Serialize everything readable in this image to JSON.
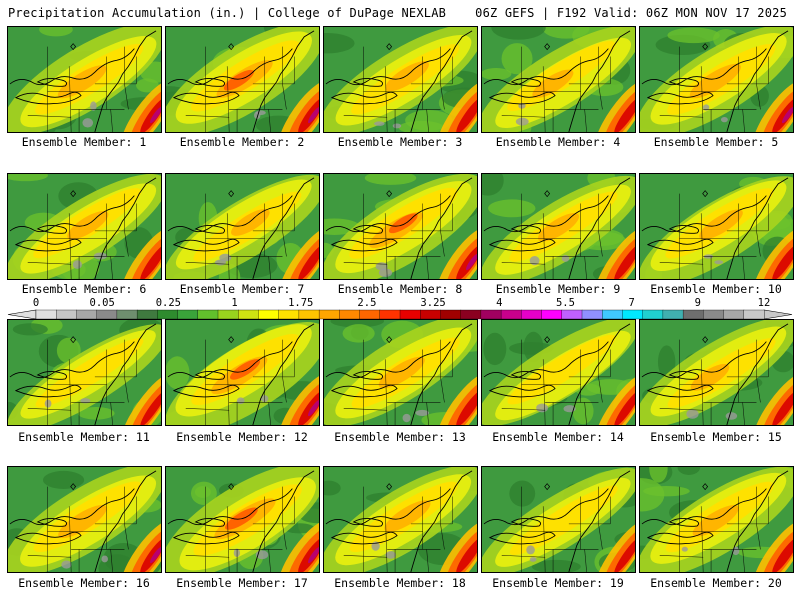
{
  "header": {
    "title_left": "Precipitation Accumulation (in.) | College of DuPage NEXLAB",
    "title_right": "06Z GEFS | F192 Valid: 06Z MON NOV 17 2025"
  },
  "panels": [
    {
      "label": "Ensemble Member: 1",
      "intensity": 0.95
    },
    {
      "label": "Ensemble Member: 2",
      "intensity": 1.1
    },
    {
      "label": "Ensemble Member: 3",
      "intensity": 0.85
    },
    {
      "label": "Ensemble Member: 4",
      "intensity": 0.8
    },
    {
      "label": "Ensemble Member: 5",
      "intensity": 1.0
    },
    {
      "label": "Ensemble Member: 6",
      "intensity": 0.8
    },
    {
      "label": "Ensemble Member: 7",
      "intensity": 0.75
    },
    {
      "label": "Ensemble Member: 8",
      "intensity": 1.05
    },
    {
      "label": "Ensemble Member: 9",
      "intensity": 0.8
    },
    {
      "label": "Ensemble Member: 10",
      "intensity": 0.85
    },
    {
      "label": "Ensemble Member: 11",
      "intensity": 0.55
    },
    {
      "label": "Ensemble Member: 12",
      "intensity": 1.1
    },
    {
      "label": "Ensemble Member: 13",
      "intensity": 0.9
    },
    {
      "label": "Ensemble Member: 14",
      "intensity": 0.65
    },
    {
      "label": "Ensemble Member: 15",
      "intensity": 0.75
    },
    {
      "label": "Ensemble Member: 16",
      "intensity": 0.95
    },
    {
      "label": "Ensemble Member: 17",
      "intensity": 1.2
    },
    {
      "label": "Ensemble Member: 18",
      "intensity": 0.9
    },
    {
      "label": "Ensemble Member: 19",
      "intensity": 0.6
    },
    {
      "label": "Ensemble Member: 20",
      "intensity": 0.9
    }
  ],
  "colorbar": {
    "labels": [
      "0",
      "0.05",
      "0.25",
      "1",
      "1.75",
      "2.5",
      "3.25",
      "4",
      "5.5",
      "7",
      "9",
      "12"
    ],
    "colors": [
      "#e0e0e0",
      "#c6c6c6",
      "#a8a8a8",
      "#8a8a8a",
      "#6e8e6e",
      "#3f7a3f",
      "#2e8b2e",
      "#3aa33a",
      "#62c02c",
      "#99d21e",
      "#cfe312",
      "#ffff00",
      "#ffe200",
      "#ffc400",
      "#ffa500",
      "#ff8800",
      "#ff6600",
      "#ff3300",
      "#e80000",
      "#c80000",
      "#a00000",
      "#8b0020",
      "#a00060",
      "#c8008c",
      "#e600c8",
      "#ff00ff",
      "#c060ff",
      "#9090ff",
      "#40c8ff",
      "#00e8ff",
      "#20d0d0",
      "#40b0b0",
      "#6e6e6e",
      "#8a8a8a",
      "#a8a8a8",
      "#c8c8c8"
    ]
  }
}
